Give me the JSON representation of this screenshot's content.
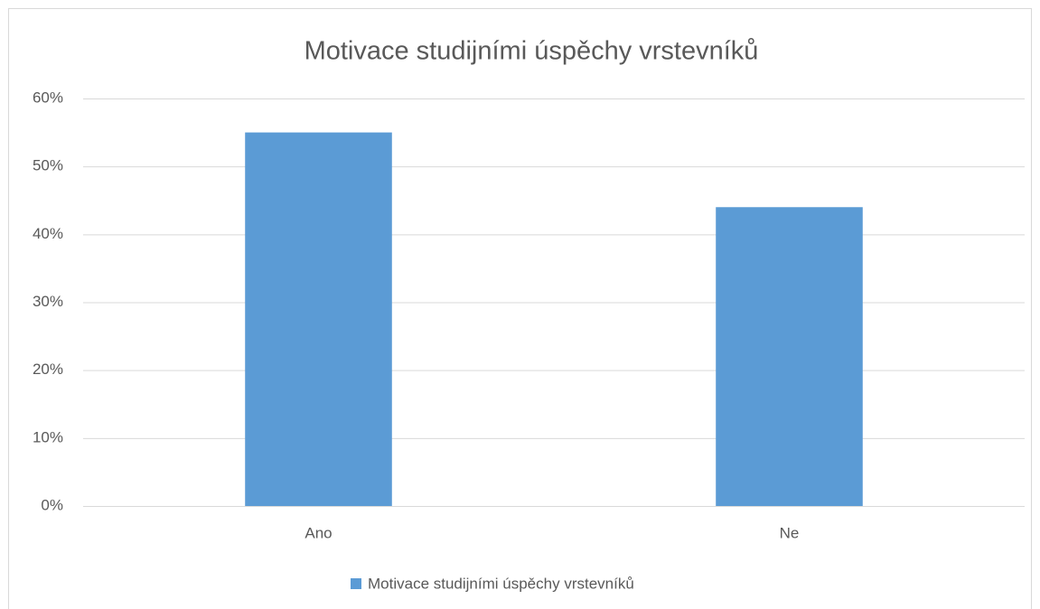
{
  "chart_data": {
    "type": "bar",
    "title": "Motivace studijními úspěchy vrstevníků",
    "categories": [
      "Ano",
      "Ne"
    ],
    "series": [
      {
        "name": "Motivace studijními úspěchy vrstevníků",
        "color": "#5b9bd5",
        "values": [
          55,
          44
        ]
      }
    ],
    "ylim": [
      0,
      60
    ],
    "yticks": [
      {
        "value": 0,
        "label": "0%"
      },
      {
        "value": 10,
        "label": "10%"
      },
      {
        "value": 20,
        "label": "20%"
      },
      {
        "value": 30,
        "label": "30%"
      },
      {
        "value": 40,
        "label": "40%"
      },
      {
        "value": 50,
        "label": "50%"
      },
      {
        "value": 60,
        "label": "60%"
      }
    ],
    "grid": true,
    "legend": "bottom"
  }
}
